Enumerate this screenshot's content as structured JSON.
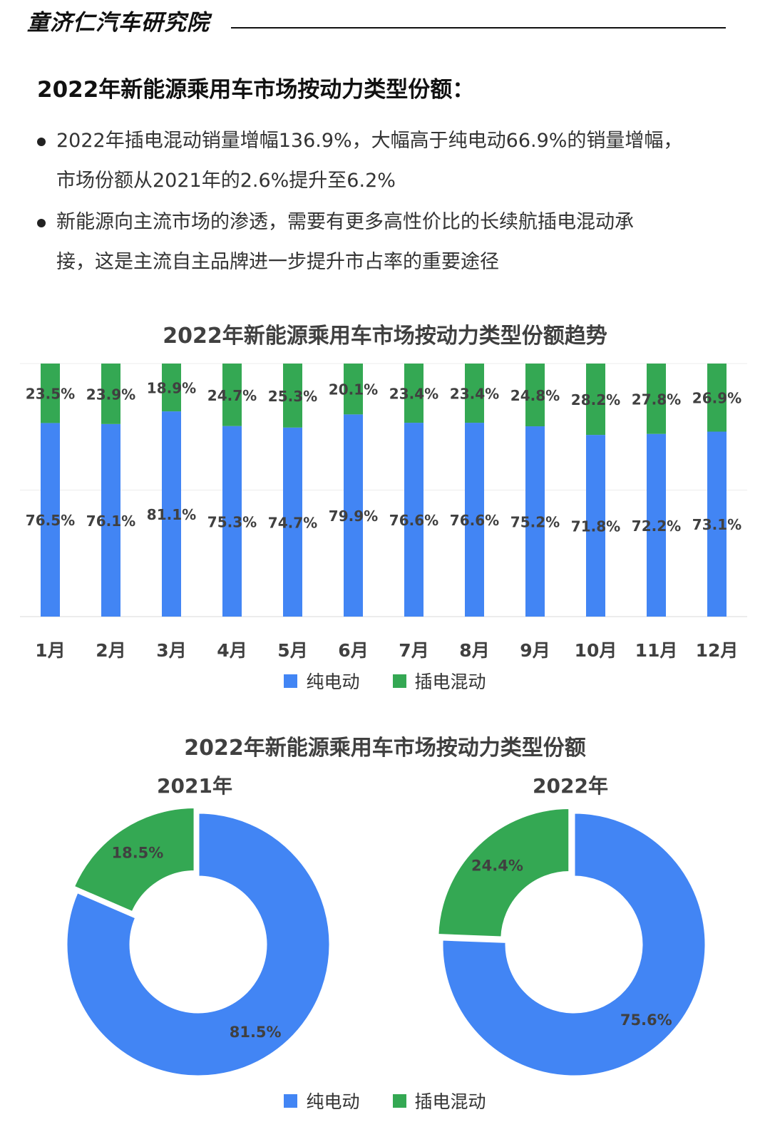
{
  "brand": "童济仁汽车研究院",
  "heading": "2022年新能源乘用车市场按动力类型份额：",
  "bullets": [
    {
      "line1": "2022年插电混动销量增幅136.9%，大幅高于纯电动66.9%的销量增幅，",
      "line2": "市场份额从2021年的2.6%提升至6.2%"
    },
    {
      "line1": "新能源向主流市场的渗透，需要有更多高性价比的长续航插电混动承",
      "line2": "接，这是主流自主品牌进一步提升市占率的重要途径"
    }
  ],
  "colors": {
    "bev": "#4285F4",
    "phev": "#34A853",
    "text": "#404040"
  },
  "legend": {
    "bev": "纯电动",
    "phev": "插电混动"
  },
  "chart_data": [
    {
      "type": "bar",
      "stacked": true,
      "title": "2022年新能源乘用车市场按动力类型份额趋势",
      "categories": [
        "1月",
        "2月",
        "3月",
        "4月",
        "5月",
        "6月",
        "7月",
        "8月",
        "9月",
        "10月",
        "11月",
        "12月"
      ],
      "series": [
        {
          "name": "纯电动",
          "values": [
            76.5,
            76.1,
            81.1,
            75.3,
            74.7,
            79.9,
            76.6,
            76.6,
            75.2,
            71.8,
            72.2,
            73.1
          ]
        },
        {
          "name": "插电混动",
          "values": [
            23.5,
            23.9,
            18.9,
            24.7,
            25.3,
            20.1,
            23.4,
            23.4,
            24.8,
            28.2,
            27.8,
            26.9
          ]
        }
      ],
      "labels": {
        "bev": [
          "76.5%",
          "76.1%",
          "81.1%",
          "75.3%",
          "74.7%",
          "79.9%",
          "76.6%",
          "76.6%",
          "75.2%",
          "71.8%",
          "72.2%",
          "73.1%"
        ],
        "phev": [
          "23.5%",
          "23.9%",
          "18.9%",
          "24.7%",
          "25.3%",
          "20.1%",
          "23.4%",
          "23.4%",
          "24.8%",
          "28.2%",
          "27.8%",
          "26.9%"
        ]
      },
      "ylim": [
        0,
        100
      ],
      "grid": true,
      "legend_position": "bottom"
    },
    {
      "type": "pie",
      "donut": true,
      "title": "2022年新能源乘用车市场按动力类型份额",
      "charts": [
        {
          "subtitle": "2021年",
          "slices": [
            {
              "name": "纯电动",
              "value": 81.5,
              "label": "81.5%"
            },
            {
              "name": "插电混动",
              "value": 18.5,
              "label": "18.5%"
            }
          ]
        },
        {
          "subtitle": "2022年",
          "slices": [
            {
              "name": "纯电动",
              "value": 75.6,
              "label": "75.6%"
            },
            {
              "name": "插电混动",
              "value": 24.4,
              "label": "24.4%"
            }
          ]
        }
      ],
      "legend_position": "bottom"
    }
  ]
}
